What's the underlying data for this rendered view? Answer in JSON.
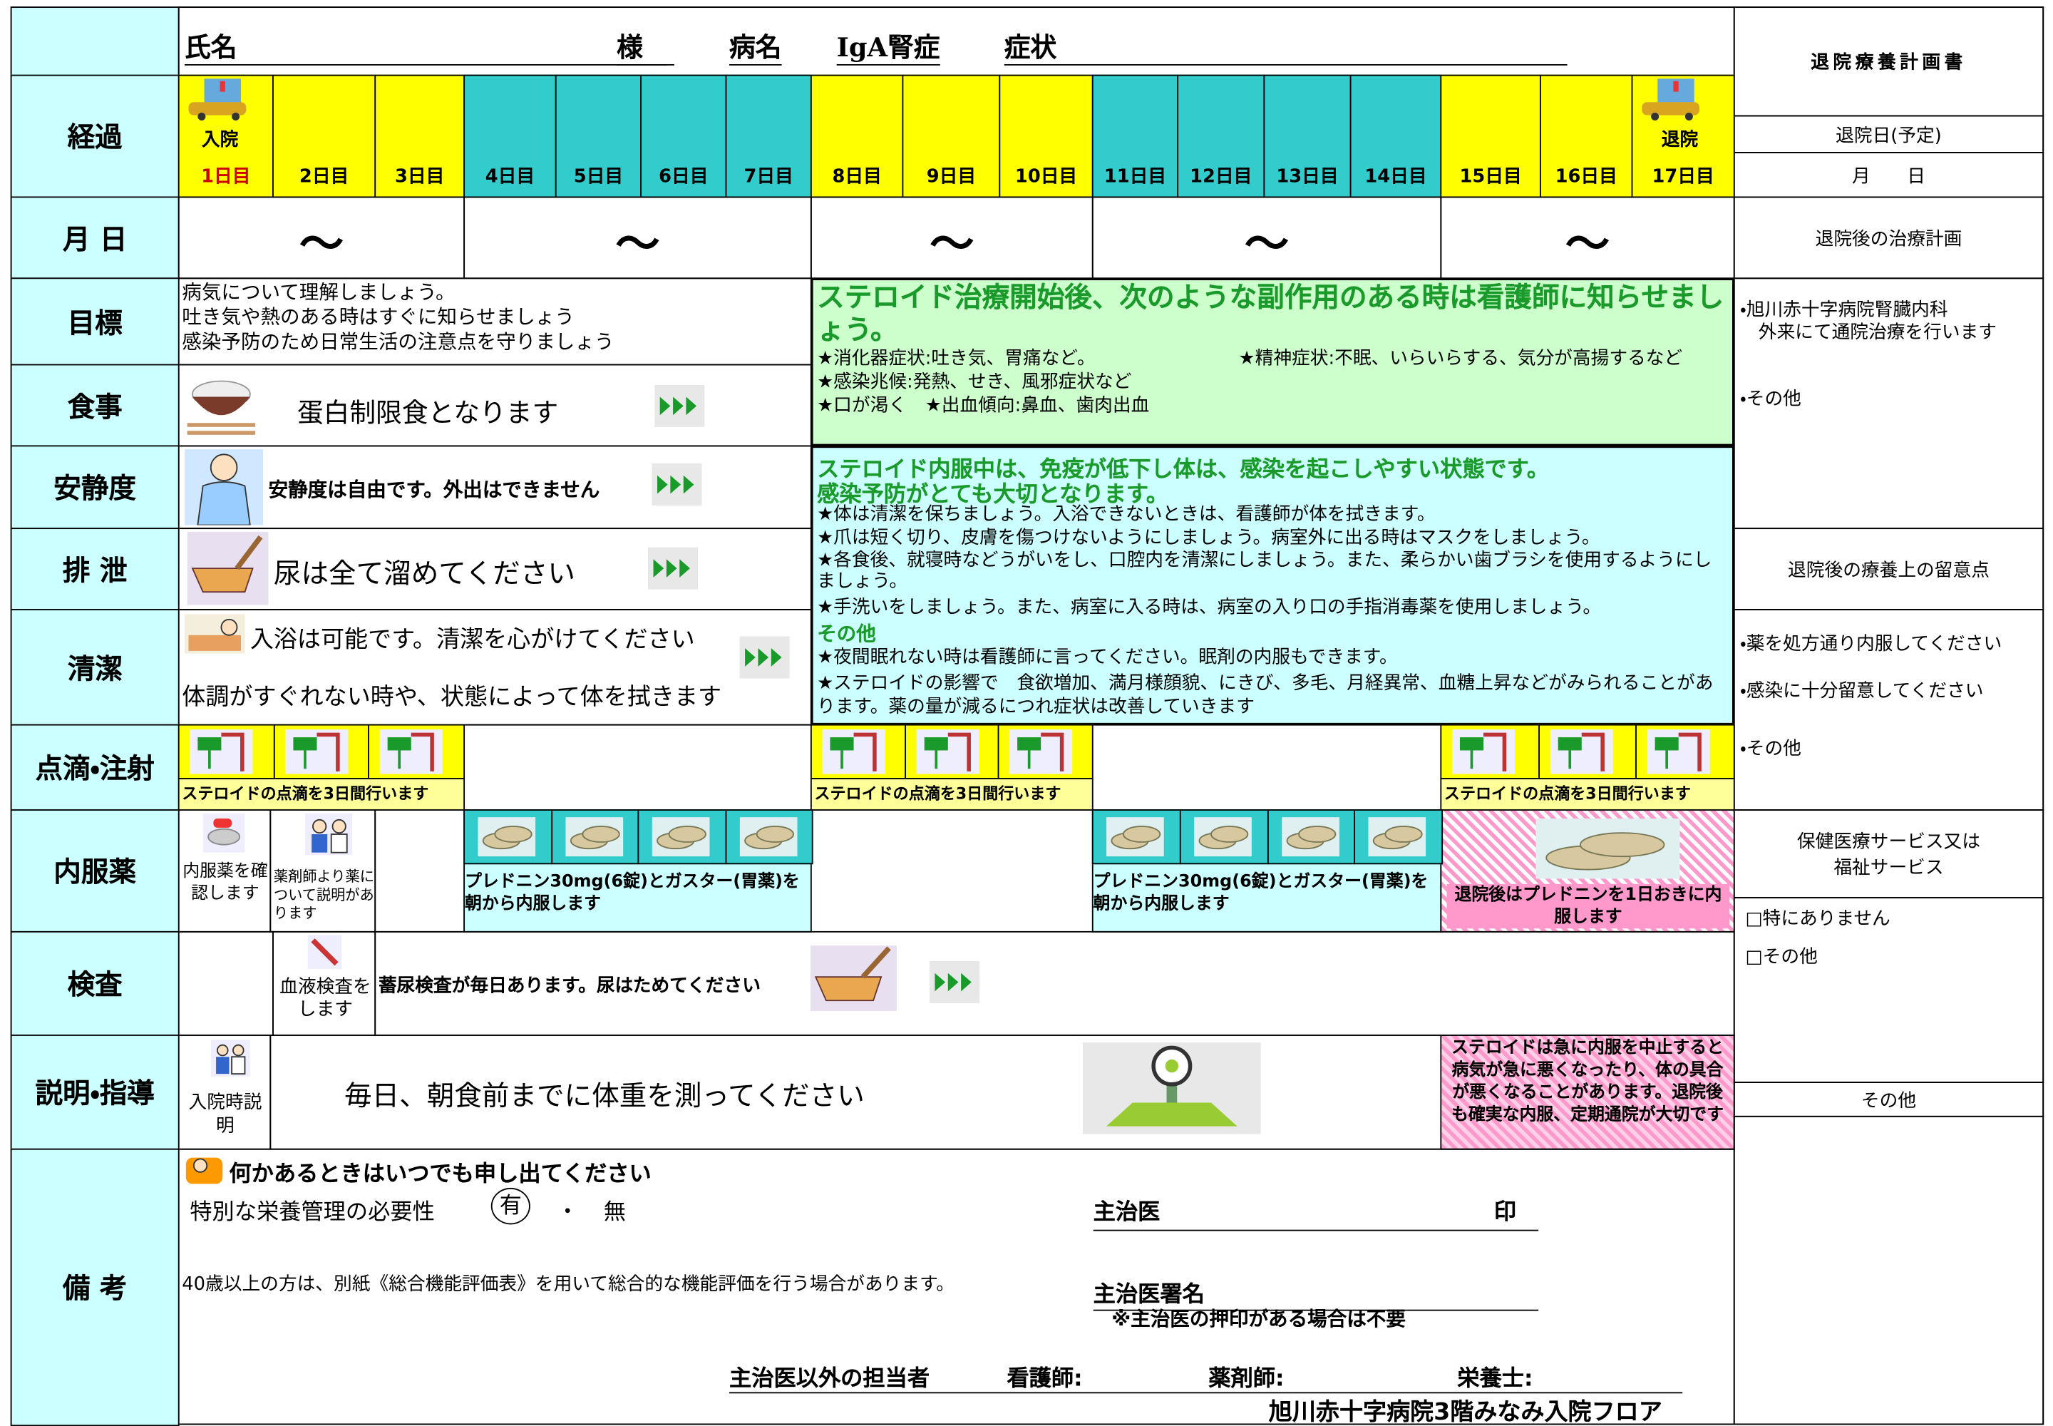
{
  "header": {
    "name_label": "氏名",
    "sama": "様",
    "disease_label": "病名",
    "disease": "IgA腎症",
    "symptom_label": "症状"
  },
  "right_panel": {
    "title": "退院療養計画書",
    "discharge_date_label": "退院日(予定)",
    "month_day": "月　　日",
    "treatment_plan_label": "退院後の治療計画",
    "treatment_plan": [
      "・旭川赤十字病院腎臓内科\n　外来にて通院治療を行います",
      "・その他"
    ],
    "care_notes_label": "退院後の療養上の留意点",
    "care_notes": [
      "・薬を処方通り内服してください",
      "・感染に十分留意してください",
      "・その他"
    ],
    "services_label": "保健医療サービス又は\n福祉サービス",
    "services": [
      "□特にありません",
      "□その他"
    ],
    "other_label": "その他"
  },
  "row_labels": [
    "経過",
    "月 日",
    "目標",
    "食事",
    "安静度",
    "排 泄",
    "清潔",
    "点滴・注射",
    "内服薬",
    "検査",
    "説明・指導",
    "備 考"
  ],
  "admission": "入院",
  "discharge": "退院",
  "days": [
    "1日目",
    "2日目",
    "3日目",
    "4日目",
    "5日目",
    "6日目",
    "7日目",
    "8日目",
    "9日目",
    "10日目",
    "11日目",
    "12日目",
    "13日目",
    "14日目",
    "15日目",
    "16日目",
    "17日目"
  ],
  "date_marks": [
    "〜",
    "〜",
    "〜",
    "〜",
    "〜"
  ],
  "goals": [
    "病気について理解しましょう。",
    "吐き気や熱のある時はすぐに知らせましょう",
    "感染予防のため日常生活の注意点を守りましょう"
  ],
  "meal": "蛋白制限食となります",
  "rest": "安静度は自由です。外出はできません",
  "excretion": "尿は全て溜めてください",
  "hygiene": [
    "入浴は可能です。清潔を心がけてください",
    "体調がすぐれない時や、状態によって体を拭きます"
  ],
  "side_effects": {
    "title": "ステロイド治療開始後、次のような副作用のある時は看護師に知らせましょう。",
    "items": [
      "★消化器症状:吐き気、胃痛など。",
      "★精神症状:不眠、いらいらする、気分が高揚するなど",
      "★感染兆候:発熱、せき、風邪症状など",
      "★口が渇く　★出血傾向:鼻血、歯肉出血"
    ]
  },
  "infection": {
    "title": [
      "ステロイド内服中は、免疫が低下し体は、感染を起こしやすい状態です。",
      "感染予防がとても大切となります。"
    ],
    "items": [
      "★体は清潔を保ちましょう。入浴できないときは、看護師が体を拭きます。",
      "★爪は短く切り、皮膚を傷つけないようにしましょう。病室外に出る時はマスクをしましょう。",
      "★各食後、就寝時などうがいをし、口腔内を清潔にしましょう。また、柔らかい歯ブラシを使用するようにしましょう。",
      "★手洗いをしましょう。また、病室に入る時は、病室の入り口の手指消毒薬を使用しましょう。"
    ],
    "other_label": "その他",
    "other_items": [
      "★夜間眠れない時は看護師に言ってください。眠剤の内服もできます。",
      "★ステロイドの影響で　食欲増加、満月様顔貌、にきび、多毛、月経異常、血糖上昇などがみられることがあります。薬の量が減るにつれ症状は改善していきます"
    ]
  },
  "drip": [
    "ステロイドの点滴を3日間行います",
    "ステロイドの点滴を3日間行います",
    "ステロイドの点滴を3日間行います"
  ],
  "medication": {
    "check": "内服薬を確認します",
    "pharmacist": "薬剤師より薬について説明があります",
    "plans": [
      "プレドニン30mg(6錠)とガスター(胃薬)を朝から内服します",
      "プレドニン30mg(6錠)とガスター(胃薬)を朝から内服します"
    ],
    "after": "退院後はプレドニンを1日おきに内服します"
  },
  "exam": {
    "blood": "血液検査をします",
    "urine": "蓄尿検査が毎日あります。尿はためてください"
  },
  "guidance": {
    "admission": "入院時説明",
    "weight": "毎日、朝食前までに体重を測ってください",
    "warning": "ステロイドは急に内服を中止すると病気が急に悪くなったり、体の具合が悪くなることがあります。退院後も確実な内服、定期通院が大切です"
  },
  "remarks": {
    "notice": "何かあるときはいつでも申し出てください",
    "nutrition": "特別な栄養管理の必要性",
    "yes": "有",
    "dot": "・",
    "no": "無",
    "assessment": "40歳以上の方は、別紙《総合機能評価表》を用いて総合的な機能評価を行う場合があります。",
    "doctor": "主治医",
    "seal": "印",
    "doctor_sign": "主治医署名",
    "seal_note": "※主治医の押印がある場合は不要",
    "staff": "主治医以外の担当者",
    "nurse": "看護師:",
    "pharmacist": "薬剤師:",
    "dietitian": "栄養士:",
    "floor": "旭川赤十字病院3階みなみ入院フロア"
  }
}
